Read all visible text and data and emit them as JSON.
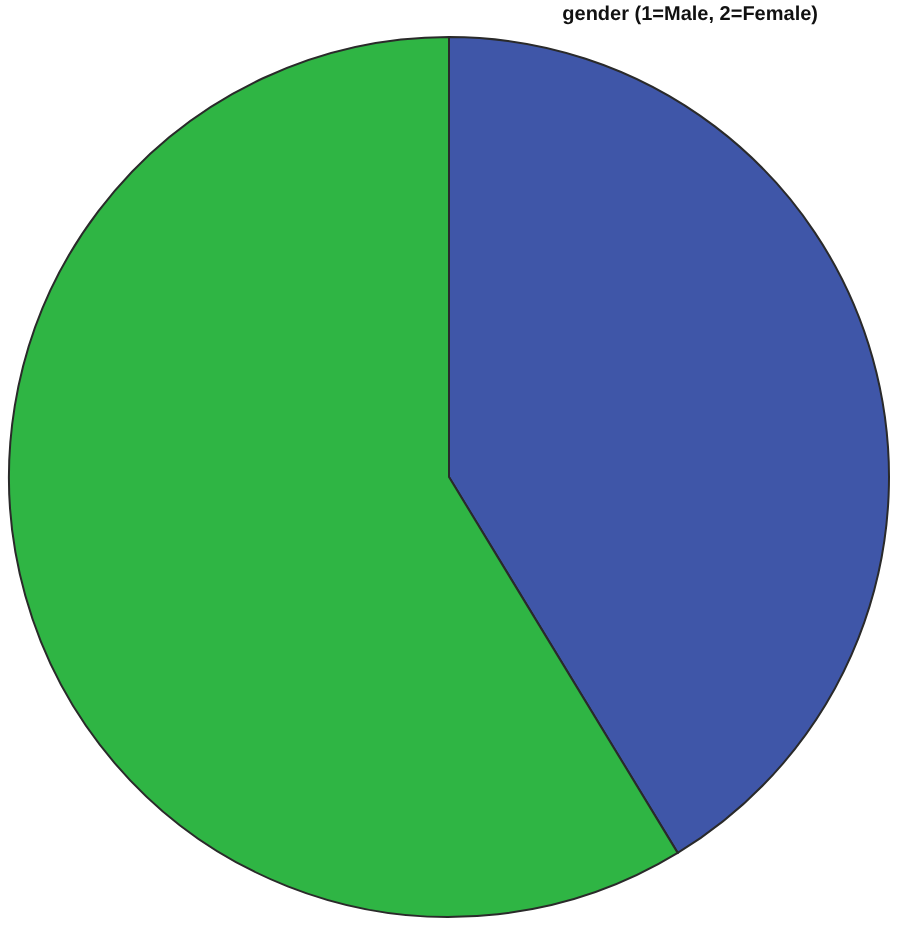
{
  "chart_data": {
    "type": "pie",
    "title": "gender (1=Male, 2=Female)",
    "categories": [
      null,
      null
    ],
    "values": [
      41.3,
      58.7
    ],
    "colors": [
      "#3f56a8",
      "#2fb544"
    ],
    "legend": false
  }
}
